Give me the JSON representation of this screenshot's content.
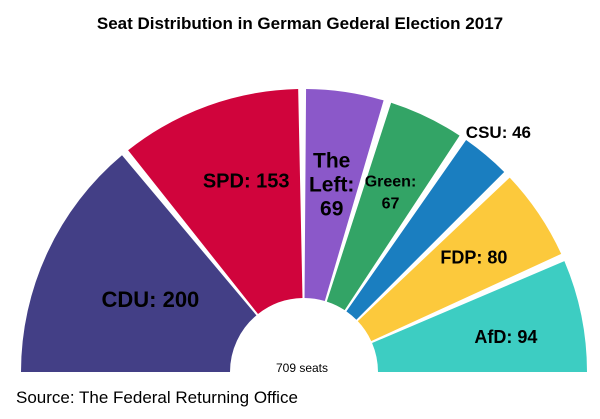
{
  "chart_data": {
    "type": "pie",
    "title": "Seat Distribution in German Gederal Election 2017",
    "total_label": "709 seats",
    "source": "Source: The Federal Returning Office",
    "unit": "seats",
    "categories": [
      "CDU",
      "SPD",
      "The Left",
      "Green",
      "CSU",
      "FDP",
      "AfD"
    ],
    "values": [
      200,
      153,
      69,
      67,
      46,
      80,
      94
    ],
    "labels": [
      [
        "CDU: 200"
      ],
      [
        "SPD: 153"
      ],
      [
        "The",
        "Left:",
        "69"
      ],
      [
        "Green:",
        "67"
      ],
      [
        "CSU: 46"
      ],
      [
        "FDP: 80"
      ],
      [
        "AfD: 94"
      ]
    ],
    "colors": [
      "#433f86",
      "#d0043c",
      "#8b58c9",
      "#33a466",
      "#1a7ec0",
      "#fcc93c",
      "#3dcdc2"
    ]
  }
}
